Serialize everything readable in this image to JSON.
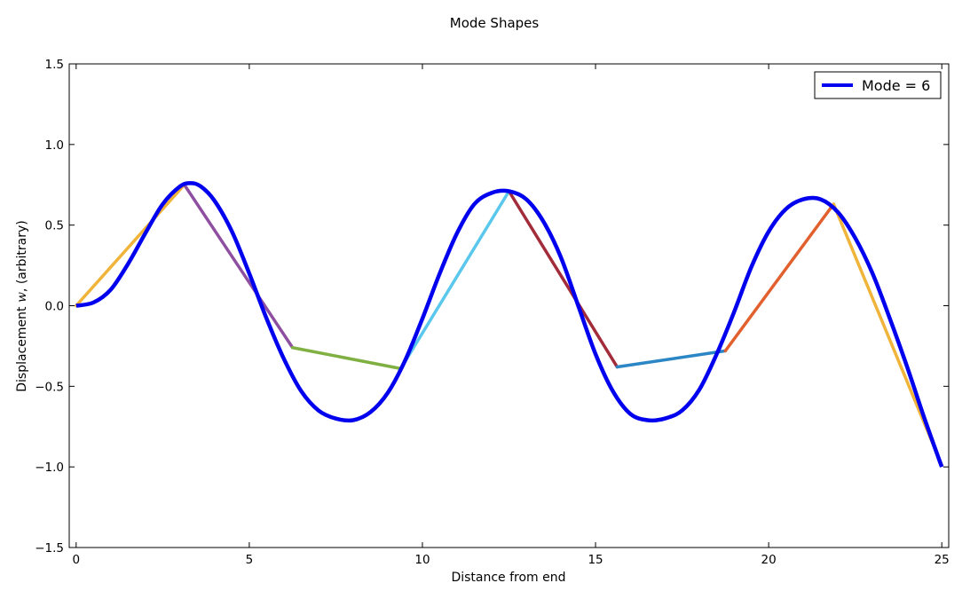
{
  "chart_data": {
    "type": "line",
    "title": "Mode Shapes",
    "xlabel": "Distance from end",
    "ylabel": "Displacement w, (arbitrary)",
    "ylabel_main": "Displacement ",
    "ylabel_var": "w",
    "ylabel_tail": ", (arbitrary)",
    "xlim": [
      -0.2,
      25.2
    ],
    "ylim": [
      -1.5,
      1.5
    ],
    "xticks": [
      0,
      5,
      10,
      15,
      20,
      25
    ],
    "xtick_labels": [
      "0",
      "5",
      "10",
      "15",
      "20",
      "25"
    ],
    "yticks": [
      -1.5,
      -1.0,
      -0.5,
      0.0,
      0.5,
      1.0,
      1.5
    ],
    "ytick_labels": [
      "−1.5",
      "−1.0",
      "−0.5",
      "0.0",
      "0.5",
      "1.0",
      "1.5"
    ],
    "grid": false,
    "legend": {
      "position": "top-right",
      "entries": [
        "Mode = 6"
      ]
    },
    "series": [
      {
        "name": "Mode = 6",
        "color": "#0000ee",
        "x": [
          0,
          0.5,
          1.0,
          1.5,
          2.0,
          2.5,
          3.0,
          3.3,
          3.6,
          4.0,
          4.5,
          5.0,
          5.5,
          6.0,
          6.5,
          7.0,
          7.5,
          8.0,
          8.5,
          9.0,
          9.5,
          10.0,
          10.5,
          11.0,
          11.5,
          12.0,
          12.5,
          13.0,
          13.5,
          14.0,
          14.5,
          15.0,
          15.5,
          16.0,
          16.5,
          17.0,
          17.5,
          18.0,
          18.5,
          19.0,
          19.5,
          20.0,
          20.5,
          21.0,
          21.5,
          22.0,
          22.5,
          23.0,
          23.5,
          24.0,
          24.5,
          25.0
        ],
        "y": [
          0.0,
          0.02,
          0.1,
          0.26,
          0.45,
          0.63,
          0.74,
          0.76,
          0.74,
          0.65,
          0.46,
          0.2,
          -0.08,
          -0.33,
          -0.53,
          -0.65,
          -0.7,
          -0.71,
          -0.66,
          -0.54,
          -0.34,
          -0.08,
          0.2,
          0.45,
          0.63,
          0.7,
          0.71,
          0.66,
          0.52,
          0.3,
          0.0,
          -0.3,
          -0.53,
          -0.67,
          -0.71,
          -0.7,
          -0.65,
          -0.52,
          -0.3,
          -0.04,
          0.24,
          0.46,
          0.6,
          0.66,
          0.66,
          0.58,
          0.42,
          0.2,
          -0.08,
          -0.38,
          -0.7,
          -1.0
        ]
      }
    ],
    "segments": [
      {
        "x": [
          0.0,
          3.125
        ],
        "y": [
          0.0,
          0.75
        ],
        "color": "#f0b43a"
      },
      {
        "x": [
          3.125,
          6.25
        ],
        "y": [
          0.75,
          -0.26
        ],
        "color": "#8e4fa0"
      },
      {
        "x": [
          6.25,
          9.375
        ],
        "y": [
          -0.26,
          -0.39
        ],
        "color": "#7fb041"
      },
      {
        "x": [
          9.375,
          12.5
        ],
        "y": [
          -0.39,
          0.71
        ],
        "color": "#5ac8ec"
      },
      {
        "x": [
          12.5,
          15.625
        ],
        "y": [
          0.71,
          -0.38
        ],
        "color": "#a32c3a"
      },
      {
        "x": [
          15.625,
          18.75
        ],
        "y": [
          -0.38,
          -0.28
        ],
        "color": "#2a86c4"
      },
      {
        "x": [
          18.75,
          21.875
        ],
        "y": [
          -0.28,
          0.63
        ],
        "color": "#e2602e"
      },
      {
        "x": [
          21.875,
          25.0
        ],
        "y": [
          0.63,
          -0.99
        ],
        "color": "#f0b43a"
      }
    ]
  }
}
